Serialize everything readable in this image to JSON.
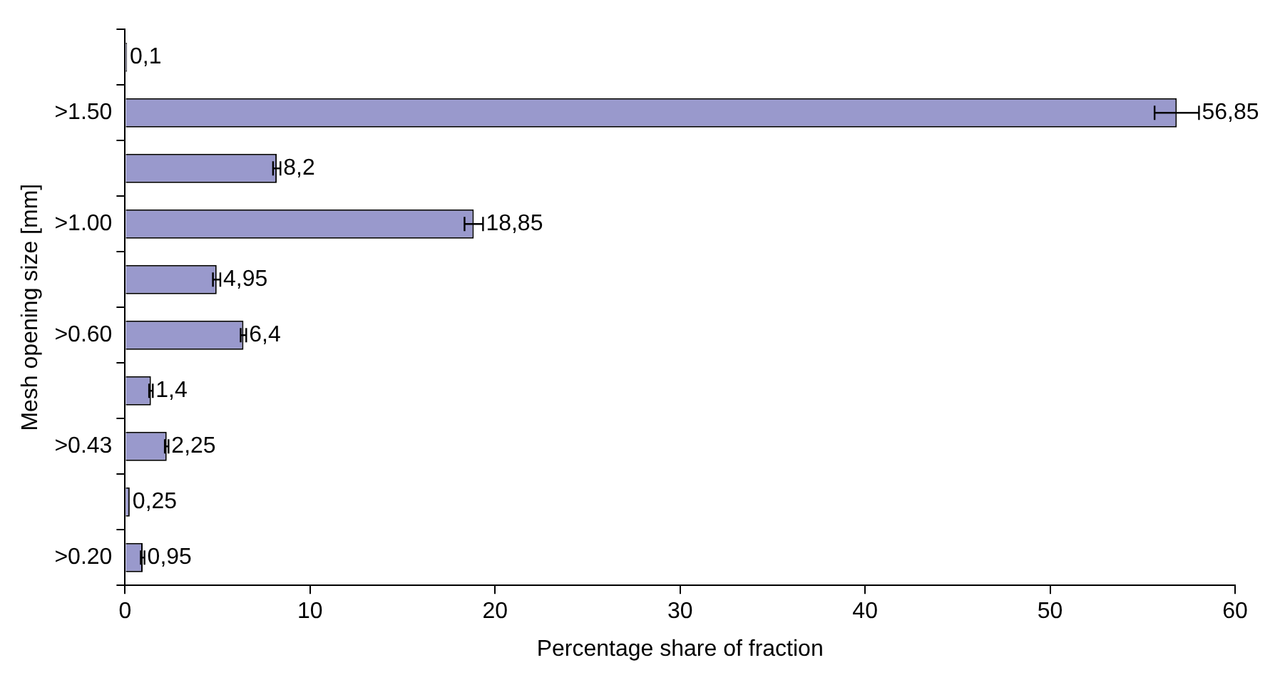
{
  "chart_data": {
    "type": "bar",
    "orientation": "horizontal",
    "xlabel": "Percentage share of fraction",
    "ylabel": "Mesh opening size [mm]",
    "categories": [
      null,
      ">1.50",
      null,
      ">1.00",
      null,
      ">0.60",
      null,
      ">0.43",
      null,
      ">0.20"
    ],
    "values": [
      0.1,
      56.85,
      8.2,
      18.85,
      4.95,
      6.4,
      1.4,
      2.25,
      0.25,
      0.95
    ],
    "value_labels": [
      "0,1",
      "56,85",
      "8,2",
      "18,85",
      "4,95",
      "6,4",
      "1,4",
      "2,25",
      "0,25",
      "0,95"
    ],
    "errors": [
      null,
      1.2,
      0.2,
      0.5,
      0.2,
      0.15,
      0.1,
      0.1,
      null,
      0.1
    ],
    "color": "#9999cc",
    "xlim": [
      0,
      60
    ],
    "xticks": [
      0,
      10,
      20,
      30,
      40,
      50,
      60
    ],
    "grid": false,
    "legend": false
  }
}
